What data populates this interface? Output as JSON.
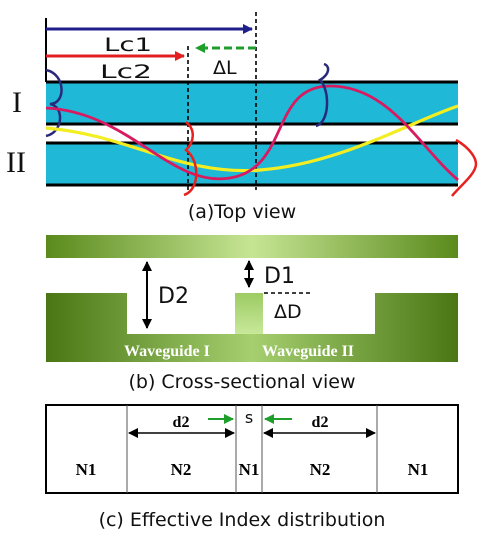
{
  "colors": {
    "waveguide_fill": "#1fb8d6",
    "waveguide_border": "#000000",
    "length_arrow": "#1f1f8c",
    "lc2_arrow": "#e02020",
    "delta_arrow": "#1e9e2a",
    "mode_navy": "#2a2a7a",
    "mode_magenta": "#d81b60",
    "mode_yellow": "#f2ee22",
    "mode_red": "#e8201e",
    "substrate_dark": "#4d7a16",
    "substrate_light": "#bfe08a",
    "label_white": "#ffffff",
    "index_arrow": "#1e9e2a"
  },
  "top_view": {
    "lc1_label": "Lc1",
    "lc2_label": "Lc2",
    "delta_l_label": "ΔL",
    "waveguide_1_label": "I",
    "waveguide_2_label": "II",
    "caption": "(a)Top view"
  },
  "cross_section": {
    "d2_label": "D2",
    "d1_label": "D1",
    "delta_d_label": "ΔD",
    "waveguide_1_label": "Waveguide I",
    "waveguide_2_label": "Waveguide II",
    "caption": "(b) Cross-sectional view"
  },
  "index_distribution": {
    "regions": [
      "N1",
      "N2",
      "N1",
      "N2",
      "N1"
    ],
    "d2_left_label": "d2",
    "d2_right_label": "d2",
    "s_label": "s",
    "caption": "(c) Effective Index distribution"
  }
}
